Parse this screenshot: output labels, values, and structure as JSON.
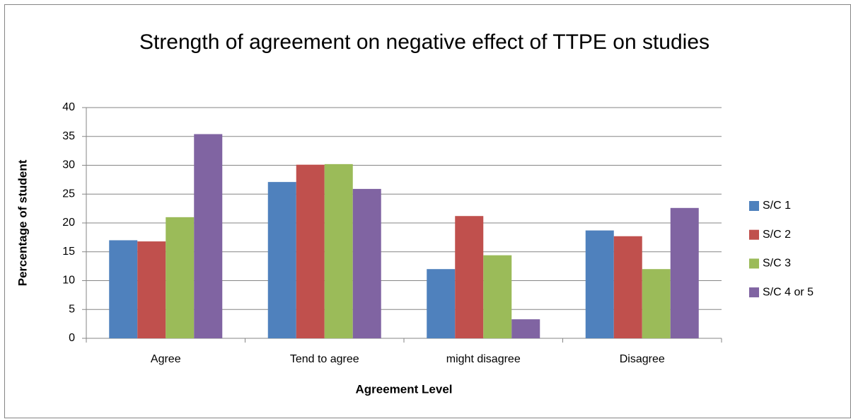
{
  "chart_data": {
    "type": "bar",
    "title": "Strength of agreement on negative effect of TTPE on studies",
    "x_label": "Agreement Level",
    "y_label": "Percentage of student",
    "categories": [
      "Agree",
      "Tend to agree",
      "might disagree",
      "Disagree"
    ],
    "series": [
      {
        "name": "S/C 1",
        "color": "#4f81bd",
        "values": [
          17,
          27.1,
          12,
          18.7
        ]
      },
      {
        "name": "S/C 2",
        "color": "#c0504d",
        "values": [
          16.8,
          30.1,
          21.2,
          17.7
        ]
      },
      {
        "name": "S/C 3",
        "color": "#9bbb59",
        "values": [
          21,
          30.2,
          14.4,
          12
        ]
      },
      {
        "name": "S/C 4 or 5",
        "color": "#8064a2",
        "values": [
          35.4,
          25.9,
          3.3,
          22.6
        ]
      }
    ],
    "ylim": [
      0,
      40
    ],
    "yticks": [
      0,
      5,
      10,
      15,
      20,
      25,
      30,
      35,
      40
    ],
    "grid": true,
    "legend": "right"
  }
}
